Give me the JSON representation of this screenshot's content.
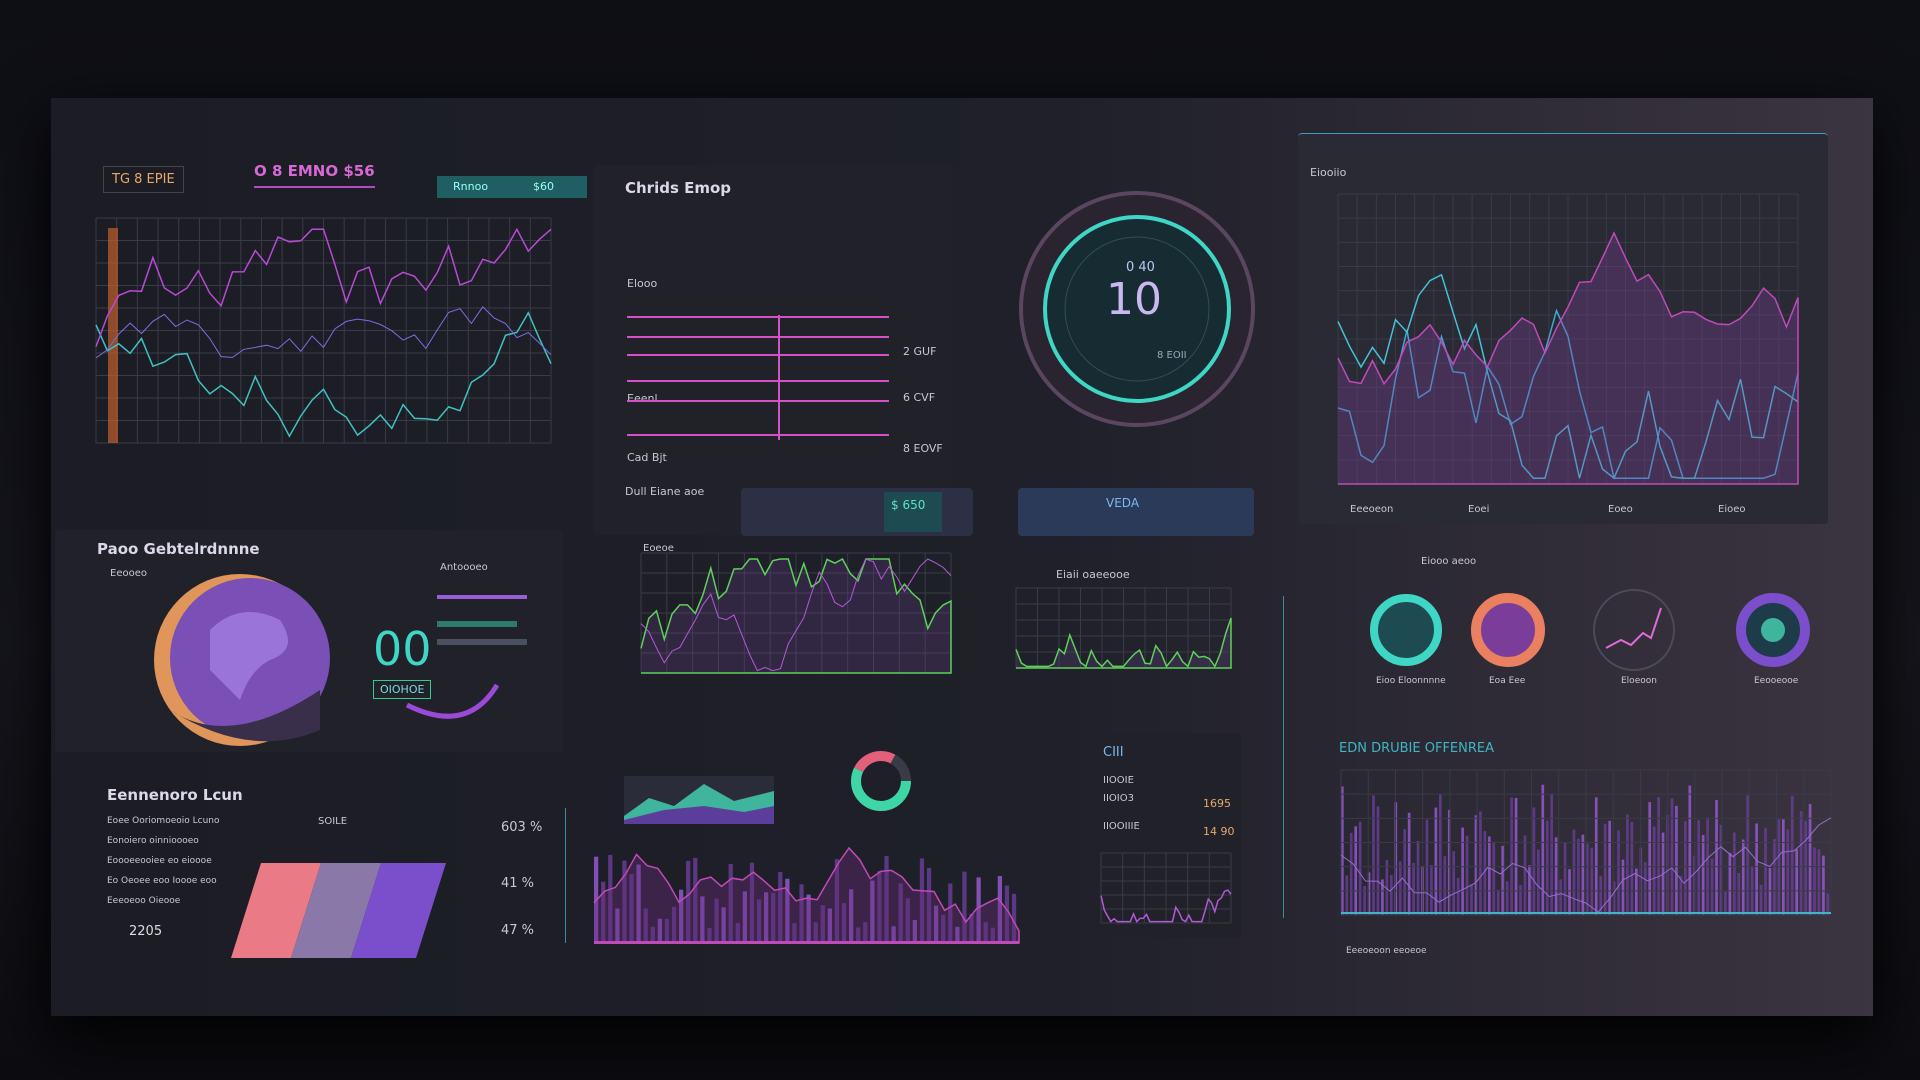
{
  "header": {
    "badge": "TG 8 EPIE",
    "title": "O 8 EMNO $56",
    "tab": "Rnnoo",
    "tab_value": "$60"
  },
  "bars_panel": {
    "title": "Chrids Emop",
    "rows": [
      "Elooo",
      "Eeenl",
      "Cad Bjt"
    ],
    "row_values": [
      "2 GUF",
      "6 CVF",
      "8 EOVF"
    ],
    "footer": "Dull Eiane aoe"
  },
  "cards": {
    "left": "$ 650",
    "right": "VEDA"
  },
  "gauge": {
    "value": "10",
    "top": "0 40",
    "bottom": "8 EOII"
  },
  "right_chart": {
    "title": "Eiooiio",
    "legend": [
      "Eeeoeon",
      "Eoei",
      "Eoeo",
      "Eioeo"
    ]
  },
  "globe_panel": {
    "title": "Paoo Gebtelrdnnne",
    "legend": "Eeooeo",
    "big": "00",
    "badge": "OIOHOE",
    "caption": "Antoooeo"
  },
  "small_charts": {
    "left": "Eoeoe",
    "right": "Eiaii oaeeooe"
  },
  "bottom_left": {
    "title": "Eennenoro Lcun",
    "rows": [
      "Eoee Ooriomoeoio Lcuno",
      "Eonoiero oinnioooeo",
      "Eoooeeooiee eo eioooe",
      "Eo Oeoee eoo Ioooe eoo",
      "Eeeoeoo Oieooe"
    ],
    "head": "SOILE",
    "percents": [
      "603 %",
      "41 %",
      "47 %"
    ],
    "footer": "2205"
  },
  "mini_panel": {
    "title": "CIII",
    "rows": [
      "IIOOIE",
      "IIOIO3",
      "IIOOIIIE"
    ],
    "values": [
      "1695",
      "14 90"
    ]
  },
  "donuts": {
    "title": "Eiooo aeoo",
    "labels": [
      "Eioo Eloonnnne",
      "Eoa Eee",
      "Eloeoon",
      "Eeooeooe"
    ]
  },
  "right_bottom": {
    "title": "EDN DRUBIE OFFENREA",
    "caption": "Eeeoeoon eeoeoe"
  }
}
